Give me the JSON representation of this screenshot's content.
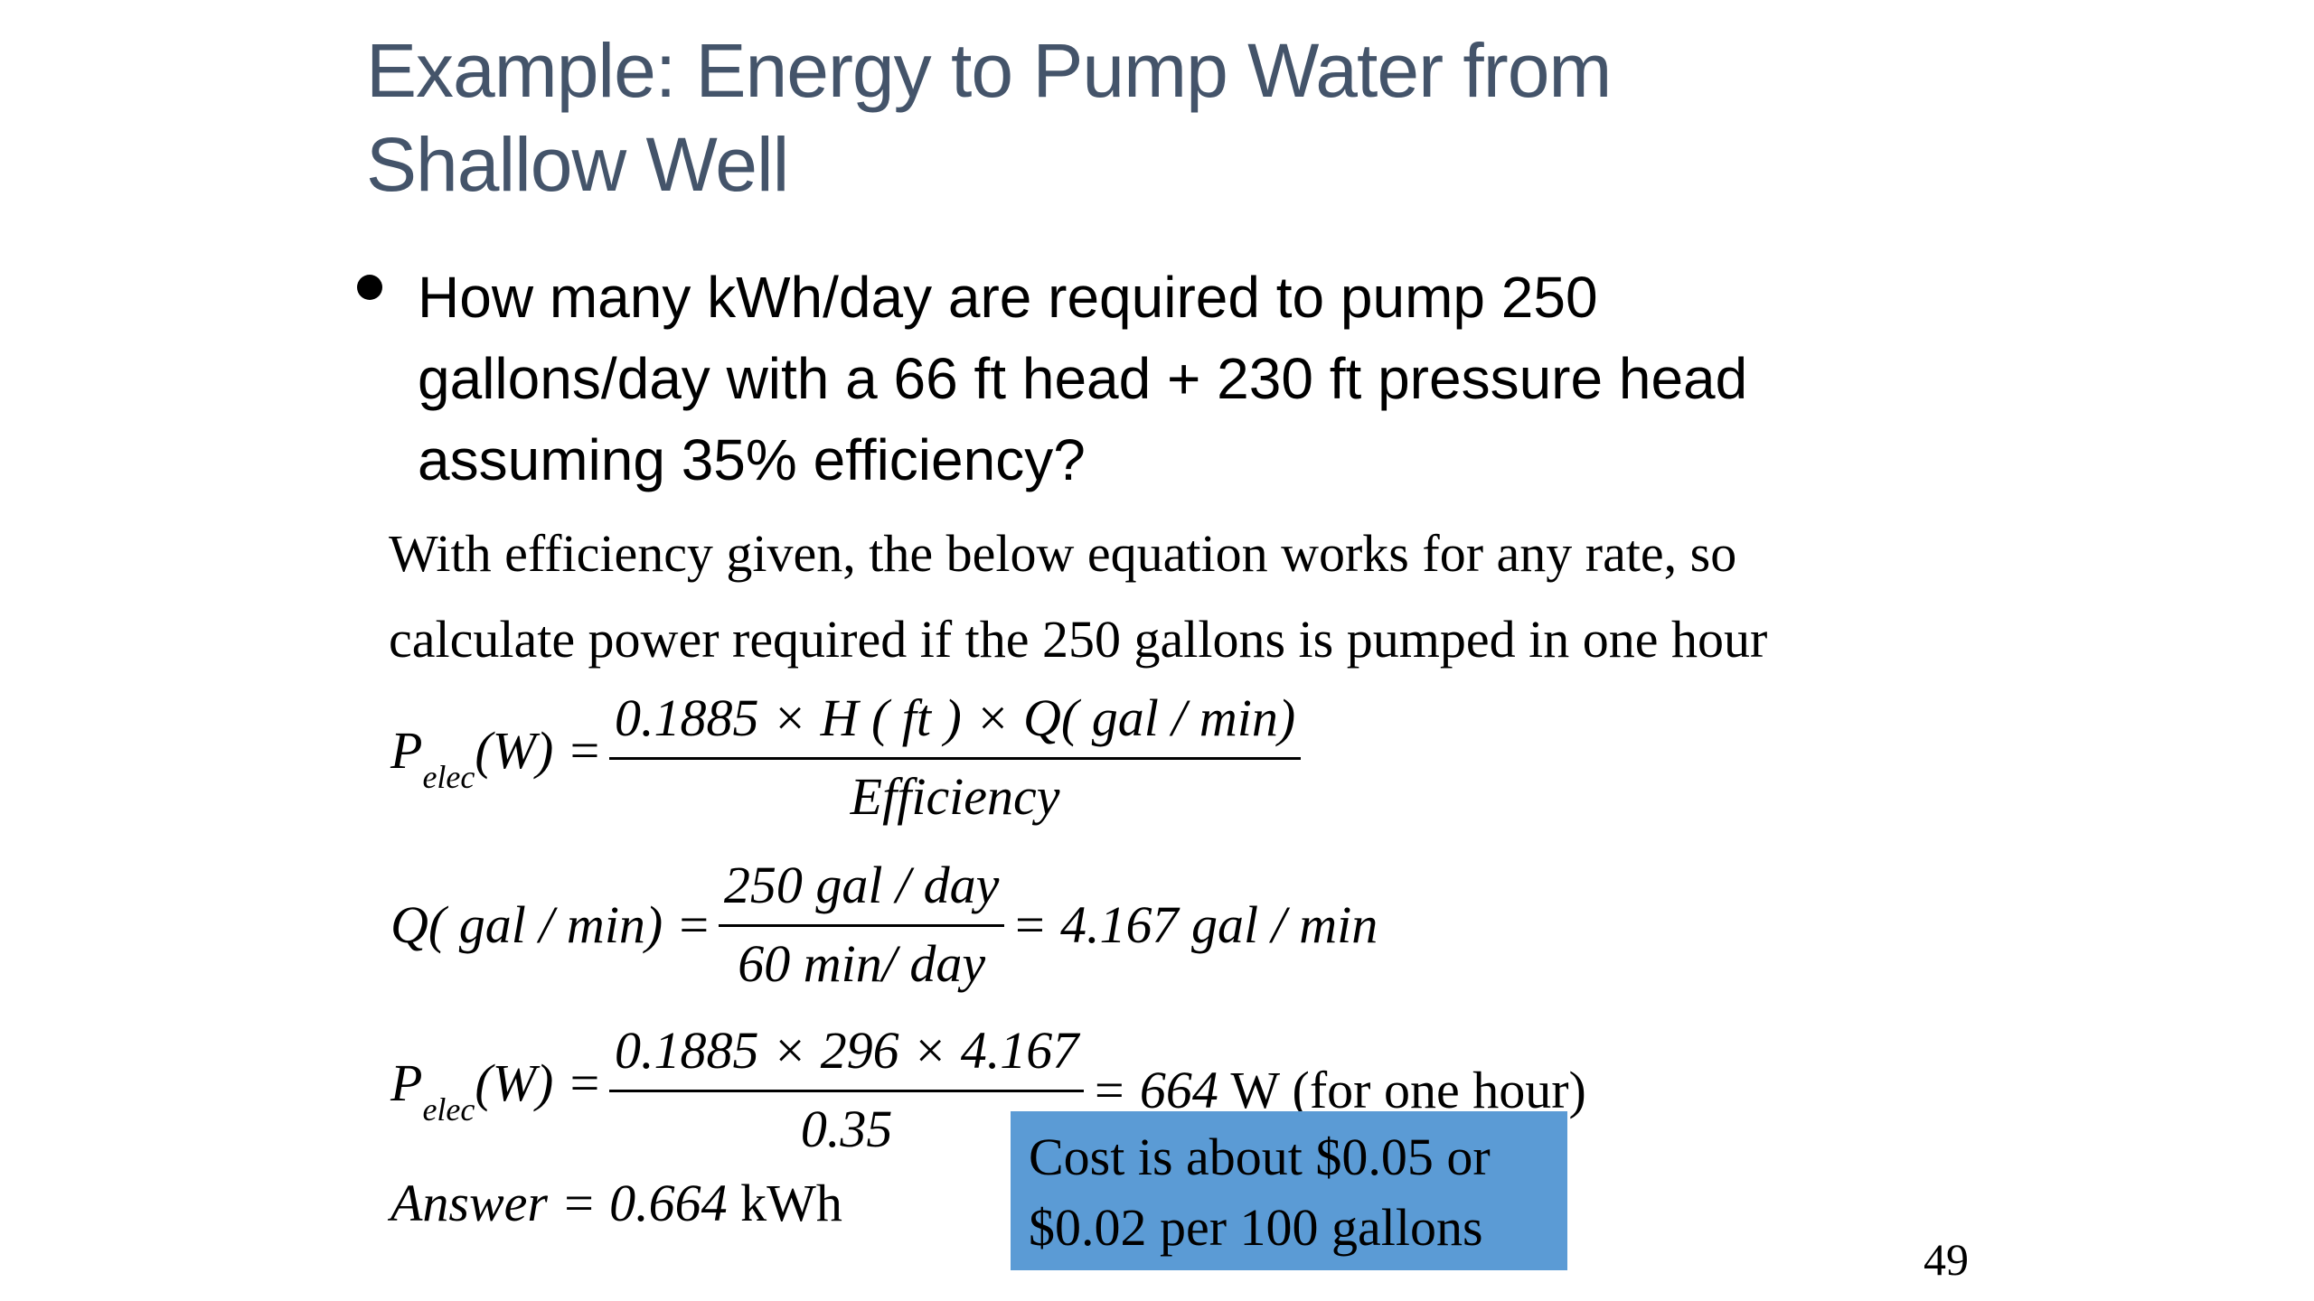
{
  "slide": {
    "title_lines": [
      "Example: Energy to Pump Water from",
      "Shallow Well"
    ],
    "bullet_lines": [
      "How many kWh/day are required to pump 250",
      "gallons/day with a 66 ft head + 230 ft pressure head",
      "assuming 35% efficiency?"
    ],
    "intro_lines": [
      "With efficiency given, the below equation works for any rate, so",
      "calculate power required if the 250 gallons is pumped in one hour"
    ],
    "equations": {
      "eq1": {
        "lhs_symbol": "P",
        "lhs_sub": "elec",
        "lhs_unit": "(W) =",
        "numerator": "0.1885 × H ( ft ) × Q( gal / min)",
        "denominator": "Efficiency"
      },
      "eq2": {
        "lhs": "Q( gal / min) =",
        "numerator": "250 gal / day",
        "denominator": "60 min/ day",
        "rhs": "= 4.167 gal / min"
      },
      "eq3": {
        "lhs_symbol": "P",
        "lhs_sub": "elec",
        "lhs_unit": "(W) =",
        "numerator": "0.1885 × 296 × 4.167",
        "denominator": "0.35",
        "rhs_value": "= 664",
        "rhs_text": " W (for one hour)"
      },
      "answer": {
        "label": "Answer = 0.664",
        "unit": " kWh"
      }
    },
    "cost_box_lines": [
      "Cost is about $0.05 or",
      "$0.02 per 100 gallons"
    ],
    "page_number": "49"
  },
  "colors": {
    "title": "#44546a",
    "cost_box_background": "#5b9bd5"
  }
}
